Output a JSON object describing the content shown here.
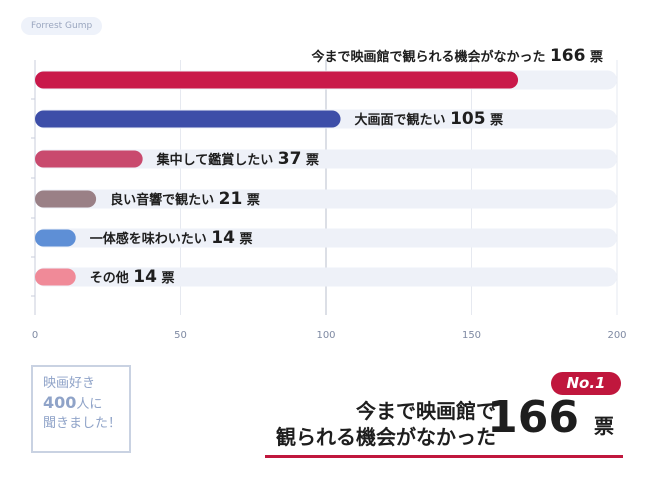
{
  "source_tag": "Forrest Gump",
  "chart_data": {
    "type": "bar",
    "orientation": "horizontal",
    "categories": [
      "今まで映画館で観られる機会がなかった",
      "大画面で観たい",
      "集中して鑑賞したい",
      "良い音響で観たい",
      "一体感を味わいたい",
      "その他"
    ],
    "values": [
      166,
      105,
      37,
      21,
      14,
      14
    ],
    "value_unit": "票",
    "colors": [
      "#c9184a",
      "#3d4ea8",
      "#c94a6e",
      "#9a8086",
      "#5e8fd6",
      "#f08a98"
    ],
    "xlim": [
      0,
      200
    ],
    "xticks": [
      0,
      50,
      100,
      150,
      200
    ],
    "grid": true,
    "reference_line": 100
  },
  "badge": {
    "line1": "映画好き",
    "line2_num": "400",
    "line2_text": "人に",
    "line3": "聞きました！"
  },
  "highlight": {
    "rank": "No.1",
    "line1": "今まで映画館で",
    "line2": "観られる機会がなかった",
    "value": "166",
    "unit": "票",
    "accent": "#c0173d"
  }
}
